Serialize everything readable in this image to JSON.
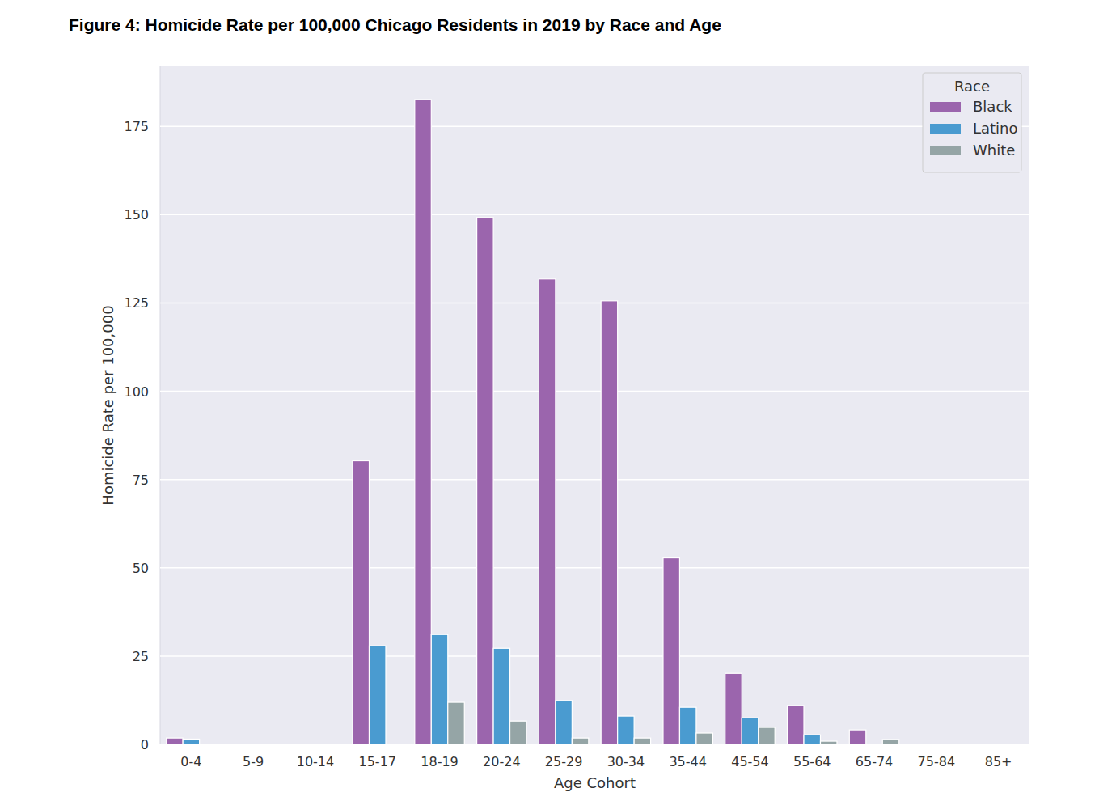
{
  "chart_data": {
    "type": "bar",
    "title": "Figure 4: Homicide Rate per 100,000 Chicago Residents in 2019 by Race and Age",
    "x_label": "Age Cohort",
    "y_label": "Homicide Rate per 100,000",
    "legend_title": "Race",
    "categories": [
      "0-4",
      "5-9",
      "10-14",
      "15-17",
      "18-19",
      "20-24",
      "25-29",
      "30-34",
      "35-44",
      "45-54",
      "55-64",
      "65-74",
      "75-84",
      "85+"
    ],
    "series": [
      {
        "name": "Black",
        "color": "#9b65ad",
        "values": [
          1.8,
          0,
          0,
          80.3,
          182.6,
          149.2,
          131.8,
          125.6,
          52.8,
          20.1,
          11.0,
          4.1,
          0,
          0
        ]
      },
      {
        "name": "Latino",
        "color": "#4a9bd0",
        "values": [
          1.5,
          0,
          0,
          27.9,
          31.1,
          27.2,
          12.4,
          8.0,
          10.5,
          7.5,
          2.7,
          0,
          0,
          0
        ]
      },
      {
        "name": "White",
        "color": "#95a5a6",
        "values": [
          0,
          0,
          0,
          0,
          11.9,
          6.6,
          1.8,
          1.8,
          3.2,
          4.8,
          0.9,
          1.4,
          0,
          0
        ]
      }
    ],
    "ylim": [
      0,
      192
    ],
    "yticks": [
      0,
      25,
      50,
      75,
      100,
      125,
      150,
      175
    ],
    "grid": true,
    "legend": "upper right"
  }
}
